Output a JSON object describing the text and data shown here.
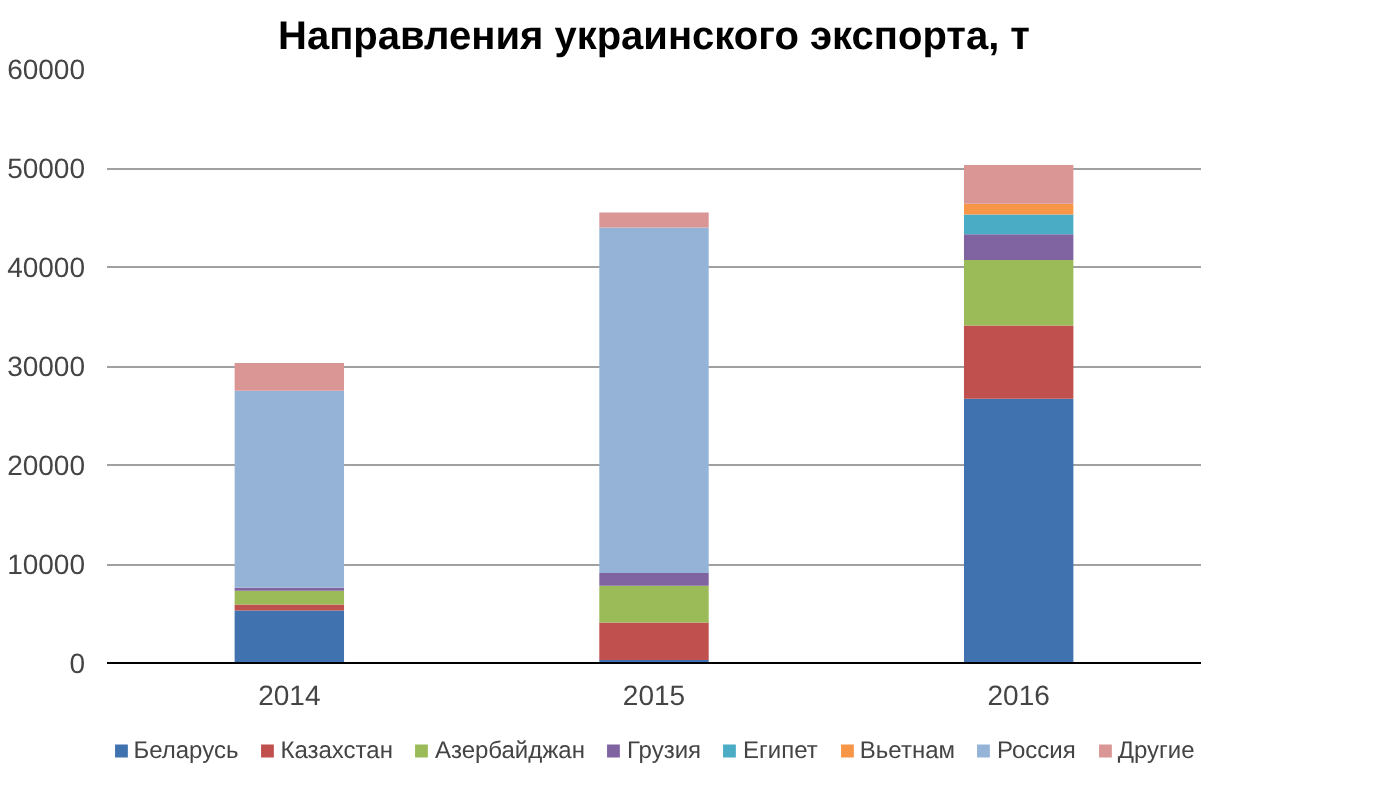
{
  "chart_data": {
    "type": "bar",
    "title": "Направления украинского экспорта, т",
    "stacked": true,
    "categories": [
      "2014",
      "2015",
      "2016"
    ],
    "series": [
      {
        "name": "Беларусь",
        "color": "#3f72ae",
        "values": [
          5300,
          300,
          26700
        ]
      },
      {
        "name": "Казахстан",
        "color": "#c0504d",
        "values": [
          600,
          3800,
          7400
        ]
      },
      {
        "name": "Азербайджан",
        "color": "#9bbb59",
        "values": [
          1400,
          3700,
          6600
        ]
      },
      {
        "name": "Грузия",
        "color": "#8064a2",
        "values": [
          300,
          1300,
          2600
        ]
      },
      {
        "name": "Египет",
        "color": "#4bacc6",
        "values": [
          0,
          0,
          2000
        ]
      },
      {
        "name": "Вьетнам",
        "color": "#f79646",
        "values": [
          0,
          0,
          1100
        ]
      },
      {
        "name": "Россия",
        "color": "#95b3d7",
        "values": [
          19900,
          34900,
          0
        ]
      },
      {
        "name": "Другие",
        "color": "#d99694",
        "values": [
          2800,
          1500,
          3900
        ]
      }
    ],
    "ylim": [
      0,
      60000
    ],
    "yticks": [
      0,
      10000,
      20000,
      30000,
      40000,
      50000,
      60000
    ],
    "grid": "y",
    "legend": "bottom"
  }
}
